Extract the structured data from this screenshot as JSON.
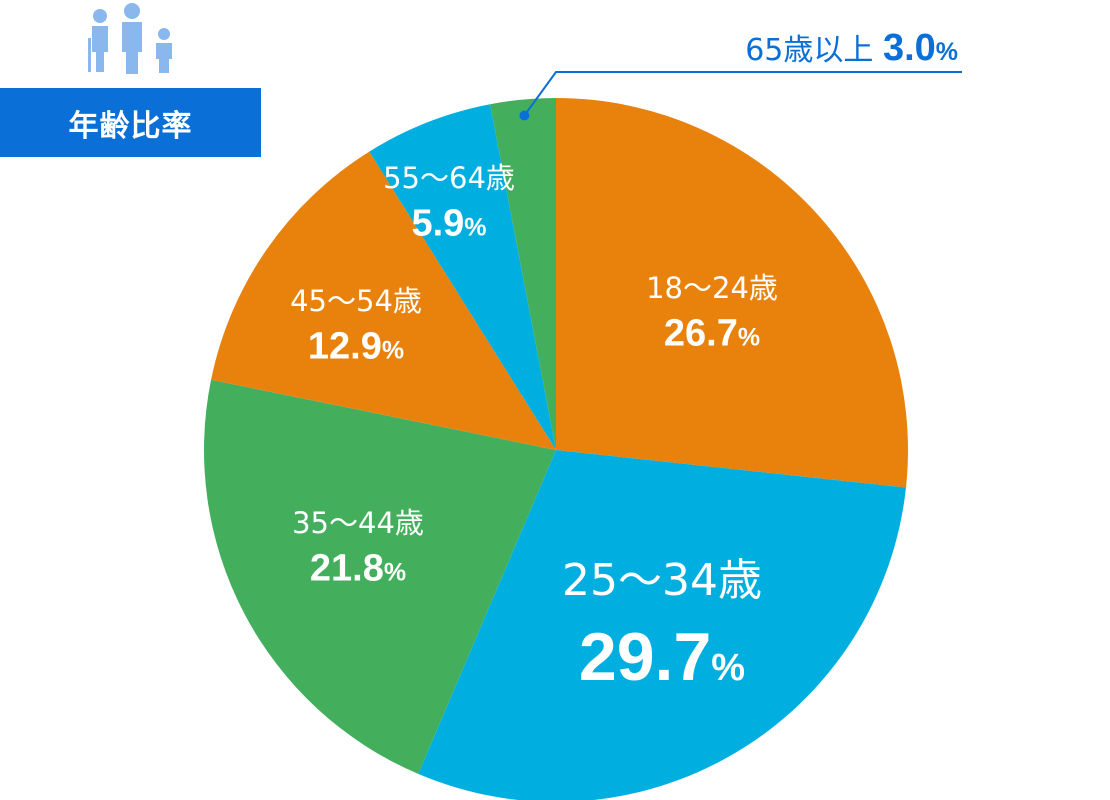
{
  "header": {
    "title": "年齢比率",
    "icon": "people-family-icon",
    "icon_color": "#8ab7ee"
  },
  "chart_data": {
    "type": "pie",
    "title": "年齢比率",
    "unit": "%",
    "slices": [
      {
        "label": "18〜24歳",
        "value": 26.7,
        "value_text": "26.7",
        "color": "#e9820c"
      },
      {
        "label": "25〜34歳",
        "value": 29.7,
        "value_text": "29.7",
        "color": "#00aee0"
      },
      {
        "label": "35〜44歳",
        "value": 21.8,
        "value_text": "21.8",
        "color": "#43af5d"
      },
      {
        "label": "45〜54歳",
        "value": 12.9,
        "value_text": "12.9",
        "color": "#e9820c"
      },
      {
        "label": "55〜64歳",
        "value": 5.9,
        "value_text": "5.9",
        "color": "#00aee0"
      },
      {
        "label": "65歳以上",
        "value": 3.0,
        "value_text": "3.0",
        "color": "#43af5d"
      }
    ],
    "start_angle_deg": 0,
    "direction": "clockwise",
    "label_color_inside": "#ffffff",
    "label_color_callout": "#0a6fd6",
    "callout_line_color": "#0a6fd6"
  }
}
